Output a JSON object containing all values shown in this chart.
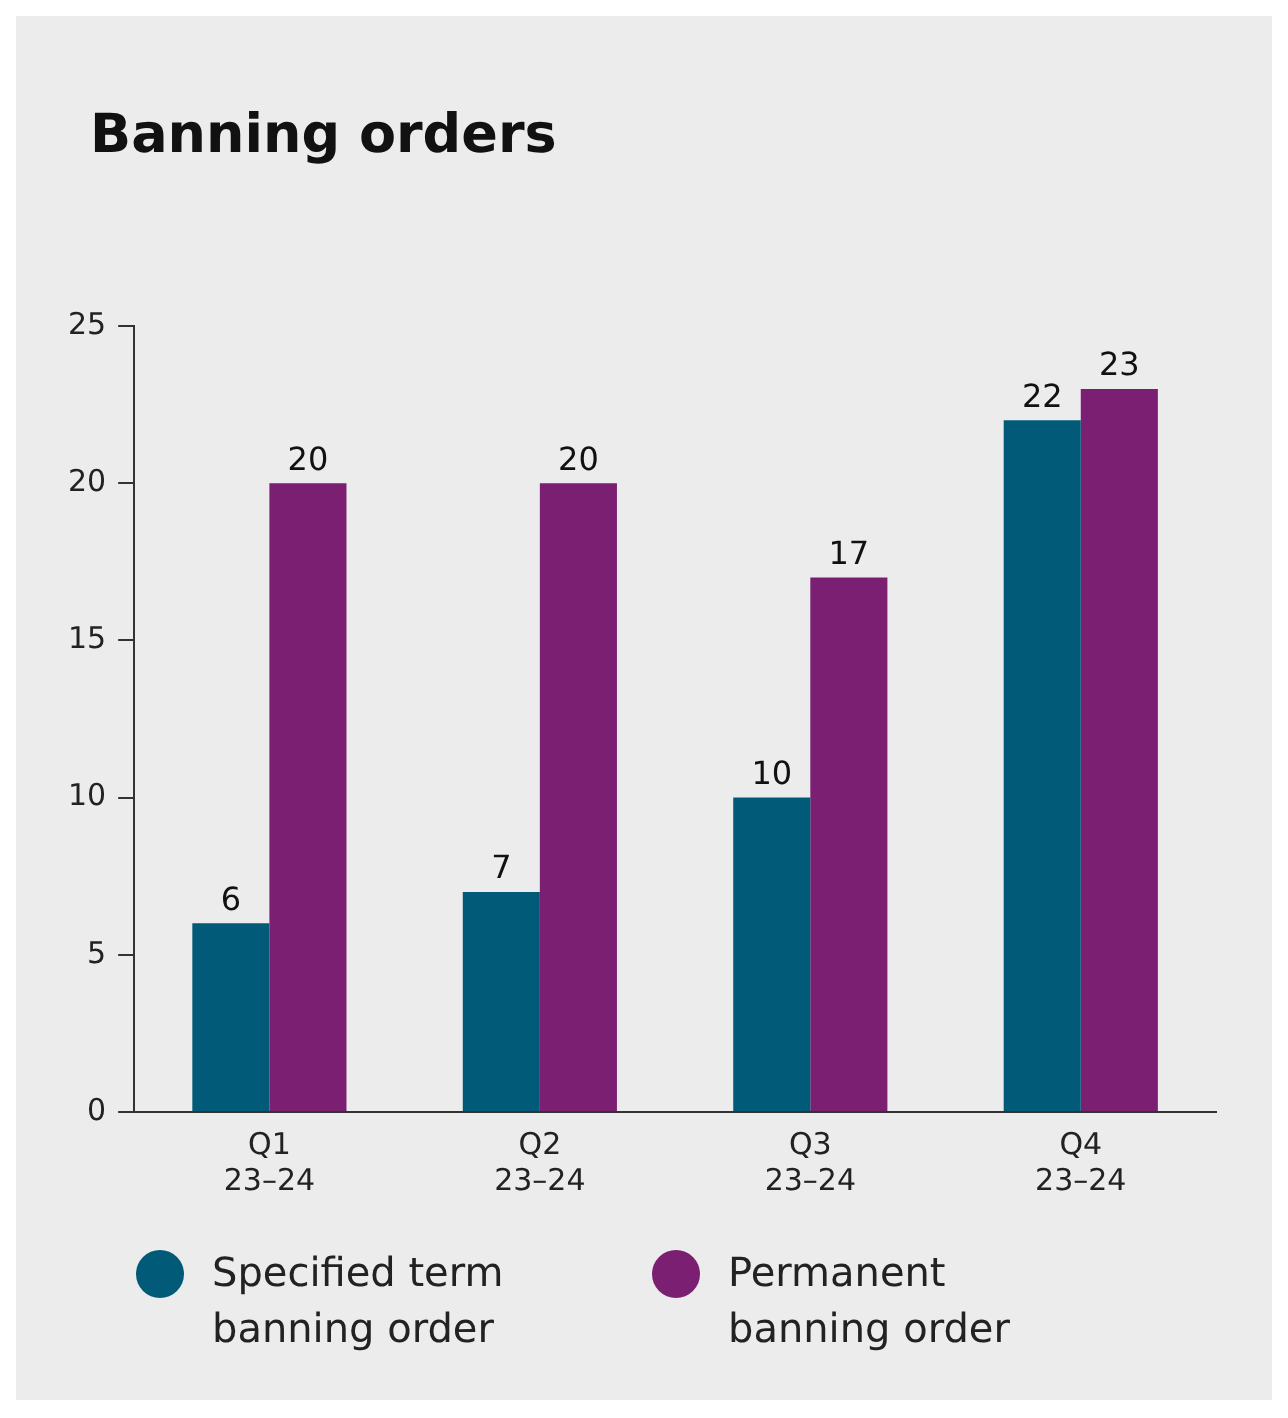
{
  "chart_data": {
    "type": "bar",
    "title": "Banning orders",
    "categories": [
      "Q1\n23–24",
      "Q2\n23–24",
      "Q3\n23–24",
      "Q4\n23–24"
    ],
    "series": [
      {
        "name": "Specified term banning order",
        "color": "#005a78",
        "values": [
          6,
          7,
          10,
          22
        ]
      },
      {
        "name": "Permanent banning order",
        "color": "#7a1f72",
        "values": [
          20,
          20,
          17,
          23
        ]
      }
    ],
    "ylim": [
      0,
      25
    ],
    "yticks": [
      0,
      5,
      10,
      15,
      20,
      25
    ],
    "grid": false,
    "legend": "bottom",
    "data_labels": true
  }
}
